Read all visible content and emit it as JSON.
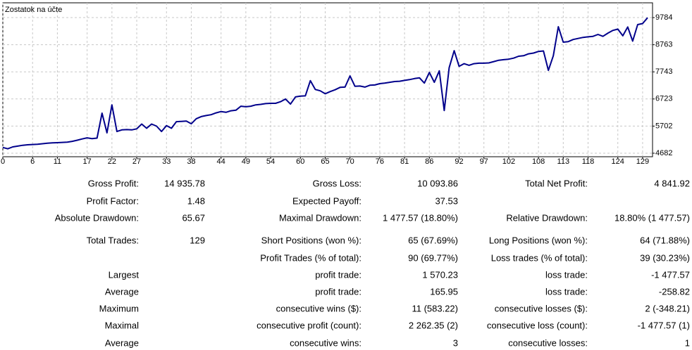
{
  "chart_data": {
    "type": "line",
    "title": "Zostatok na účte",
    "color": "#00008b",
    "grid": true,
    "x": [
      0,
      1,
      2,
      3,
      4,
      5,
      6,
      7,
      8,
      9,
      10,
      11,
      12,
      13,
      14,
      15,
      16,
      17,
      18,
      19,
      20,
      21,
      22,
      23,
      24,
      25,
      26,
      27,
      28,
      29,
      30,
      31,
      32,
      33,
      34,
      35,
      36,
      37,
      38,
      39,
      40,
      41,
      42,
      43,
      44,
      45,
      46,
      47,
      48,
      49,
      50,
      51,
      52,
      53,
      54,
      55,
      56,
      57,
      58,
      59,
      60,
      61,
      62,
      63,
      64,
      65,
      66,
      67,
      68,
      69,
      70,
      71,
      72,
      73,
      74,
      75,
      76,
      77,
      78,
      79,
      80,
      81,
      82,
      83,
      84,
      85,
      86,
      87,
      88,
      89,
      90,
      91,
      92,
      93,
      94,
      95,
      96,
      97,
      98,
      99,
      100,
      101,
      102,
      103,
      104,
      105,
      106,
      107,
      108,
      109,
      110,
      111,
      112,
      113,
      114,
      115,
      116,
      117,
      118,
      119,
      120,
      121,
      122,
      123,
      124,
      125,
      126,
      127,
      128,
      129,
      130
    ],
    "values": [
      4900,
      4850,
      4920,
      4950,
      4980,
      5000,
      5010,
      5020,
      5040,
      5060,
      5070,
      5080,
      5090,
      5100,
      5130,
      5170,
      5220,
      5260,
      5230,
      5250,
      6190,
      5450,
      6500,
      5500,
      5560,
      5570,
      5560,
      5600,
      5780,
      5620,
      5780,
      5700,
      5500,
      5720,
      5620,
      5870,
      5880,
      5890,
      5790,
      5980,
      6060,
      6100,
      6130,
      6200,
      6250,
      6220,
      6280,
      6300,
      6450,
      6430,
      6450,
      6500,
      6520,
      6550,
      6560,
      6560,
      6620,
      6720,
      6530,
      6800,
      6830,
      6840,
      7410,
      7080,
      7030,
      6920,
      7000,
      7070,
      7160,
      7170,
      7590,
      7200,
      7210,
      7170,
      7240,
      7250,
      7300,
      7320,
      7350,
      7380,
      7390,
      7420,
      7450,
      7490,
      7520,
      7320,
      7720,
      7350,
      7780,
      6290,
      7900,
      8540,
      7950,
      8050,
      7990,
      8050,
      8070,
      8070,
      8080,
      8130,
      8180,
      8200,
      8220,
      8260,
      8330,
      8350,
      8420,
      8450,
      8510,
      8530,
      7800,
      8350,
      9440,
      8860,
      8880,
      8960,
      9000,
      9040,
      9060,
      9080,
      9150,
      9080,
      9200,
      9300,
      9350,
      9100,
      9430,
      8900,
      9520,
      9560,
      9780
    ],
    "xlim": [
      0,
      131
    ],
    "xticks": [
      0,
      6,
      11,
      17,
      22,
      27,
      33,
      38,
      44,
      49,
      54,
      60,
      65,
      70,
      76,
      81,
      86,
      92,
      97,
      102,
      108,
      113,
      118,
      124,
      129
    ],
    "ylim": [
      4550,
      10340
    ],
    "yticks": [
      4682,
      5702,
      6723,
      7743,
      8763,
      9784
    ]
  },
  "table": {
    "rows": [
      [
        "Gross Profit:",
        "14 935.78",
        "Gross Loss:",
        "10 093.86",
        "Total Net Profit:",
        "4 841.92"
      ],
      [
        "Profit Factor:",
        "1.48",
        "Expected Payoff:",
        "37.53",
        null,
        null
      ],
      [
        "Absolute Drawdown:",
        "65.67",
        "Maximal Drawdown:",
        "1 477.57 (18.80%)",
        "Relative Drawdown:",
        "18.80% (1 477.57)"
      ],
      [
        "Total Trades:",
        "129",
        "Short Positions (won %):",
        "65 (67.69%)",
        "Long Positions (won %):",
        "64 (71.88%)"
      ],
      [
        null,
        null,
        "Profit Trades (% of total):",
        "90 (69.77%)",
        "Loss trades (% of total):",
        "39 (30.23%)"
      ],
      [
        "Largest",
        null,
        "profit trade:",
        "1 570.23",
        "loss trade:",
        "-1 477.57"
      ],
      [
        "Average",
        null,
        "profit trade:",
        "165.95",
        "loss trade:",
        "-258.82"
      ],
      [
        "Maximum",
        null,
        "consecutive wins ($):",
        "11 (583.22)",
        "consecutive losses ($):",
        "2 (-348.21)"
      ],
      [
        "Maximal",
        null,
        "consecutive profit (count):",
        "2 262.35 (2)",
        "consecutive loss (count):",
        "-1 477.57 (1)"
      ],
      [
        "Average",
        null,
        "consecutive wins:",
        "3",
        "consecutive losses:",
        "1"
      ]
    ]
  }
}
